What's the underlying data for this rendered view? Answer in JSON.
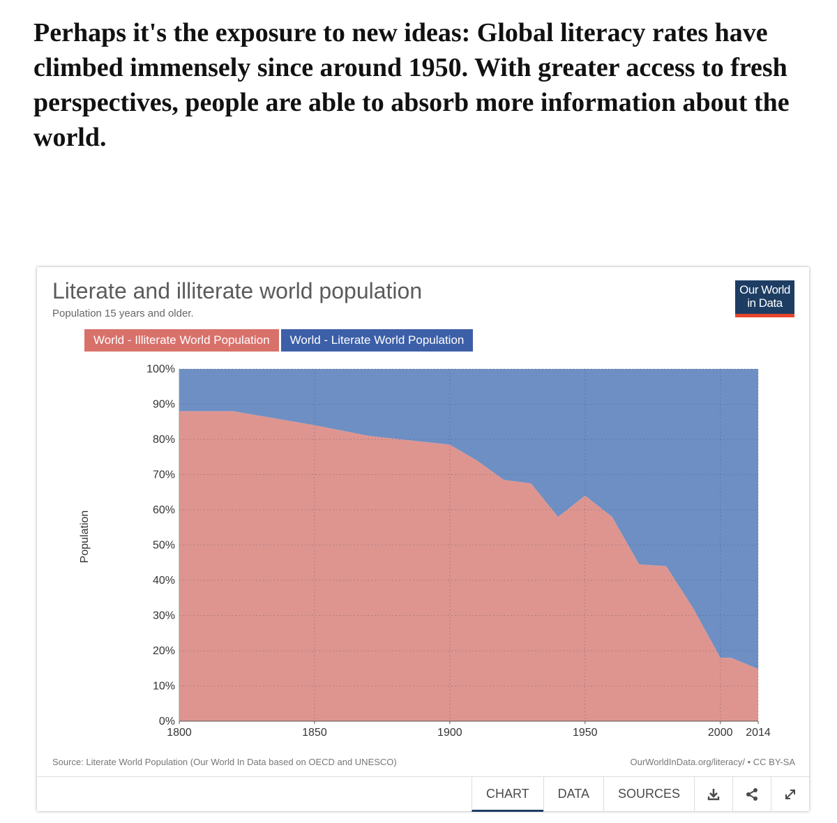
{
  "headline": "Perhaps it's the exposure to new ideas: Global literacy rates have climbed immensely since around 1950. With greater access to fresh perspectives, people are able to absorb more information about the world.",
  "logo": {
    "line1": "Our World",
    "line2": "in Data"
  },
  "footer": {
    "source": "Source: Literate World Population (Our World In Data based on OECD and UNESCO)",
    "credit": "OurWorldInData.org/literacy/ • CC BY-SA",
    "tabs": [
      "CHART",
      "DATA",
      "SOURCES"
    ],
    "icons": [
      "download-icon",
      "share-icon",
      "expand-icon"
    ]
  },
  "colors": {
    "illiterate": "#de9590",
    "literate": "#6e8fc3",
    "legend_illiterate": "#d9716b",
    "legend_literate": "#3d5fa8",
    "logo_bg": "#1d3d63",
    "logo_accent": "#e8462b"
  },
  "chart_data": {
    "type": "area",
    "stacked": true,
    "normalized": true,
    "title": "Literate and illiterate world population",
    "subtitle": "Population 15 years and older.",
    "ylabel": "Population",
    "xlabel": "",
    "xlim": [
      1800,
      2014
    ],
    "ylim": [
      0,
      100
    ],
    "x_ticks": [
      1800,
      1850,
      1900,
      1950,
      2000,
      2014
    ],
    "y_ticks": [
      "0%",
      "10%",
      "20%",
      "30%",
      "40%",
      "50%",
      "60%",
      "70%",
      "80%",
      "90%",
      "100%"
    ],
    "grid": true,
    "legend_placement": "top-left",
    "x": [
      1800,
      1820,
      1850,
      1870,
      1900,
      1910,
      1920,
      1930,
      1940,
      1950,
      1960,
      1970,
      1980,
      1990,
      2000,
      2004,
      2014
    ],
    "series": [
      {
        "name": "World - Illiterate World Population",
        "values": [
          88,
          88,
          84,
          81,
          78.5,
          74,
          68.5,
          67.5,
          58,
          64,
          58,
          44.5,
          44,
          32,
          18,
          18,
          14.8
        ]
      },
      {
        "name": "World - Literate World Population",
        "values": [
          12,
          12,
          16,
          19,
          21.5,
          26,
          31.5,
          32.5,
          42,
          36,
          42,
          55.5,
          56,
          68,
          82,
          82,
          85.2
        ]
      }
    ]
  }
}
